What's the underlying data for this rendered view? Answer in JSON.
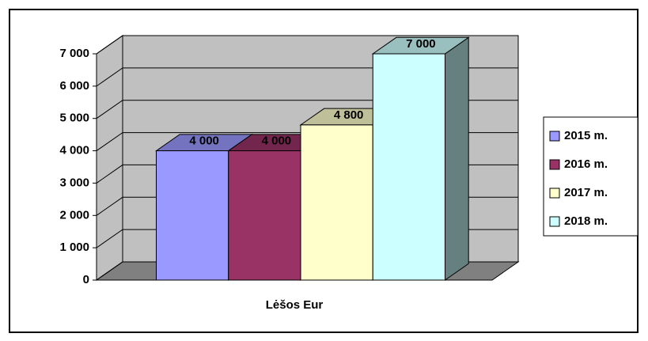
{
  "chart_data": {
    "type": "bar",
    "categories": [
      "Lėšos Eur"
    ],
    "series": [
      {
        "name": "2015 m.",
        "color": "#9999ff",
        "values": [
          4000
        ],
        "value_labels": [
          "4 000"
        ]
      },
      {
        "name": "2016 m.",
        "color": "#993366",
        "values": [
          4000
        ],
        "value_labels": [
          "4 000"
        ]
      },
      {
        "name": "2017 m.",
        "color": "#ffffcc",
        "values": [
          4800
        ],
        "value_labels": [
          "4 800"
        ]
      },
      {
        "name": "2018 m.",
        "color": "#ccffff",
        "values": [
          7000
        ],
        "value_labels": [
          "7 000"
        ]
      }
    ],
    "ylim": [
      0,
      7000
    ],
    "yticks": [
      0,
      {
        "value": 1000,
        "label": "1 000"
      },
      {
        "value": 2000,
        "label": "2 000"
      },
      {
        "value": 3000,
        "label": "3 000"
      },
      {
        "value": 4000,
        "label": "4 000"
      },
      {
        "value": 5000,
        "label": "5 000"
      },
      {
        "value": 6000,
        "label": "6 000"
      },
      {
        "value": 7000,
        "label": "7 000"
      }
    ],
    "grid": true,
    "legend": "right",
    "view": "3d"
  }
}
